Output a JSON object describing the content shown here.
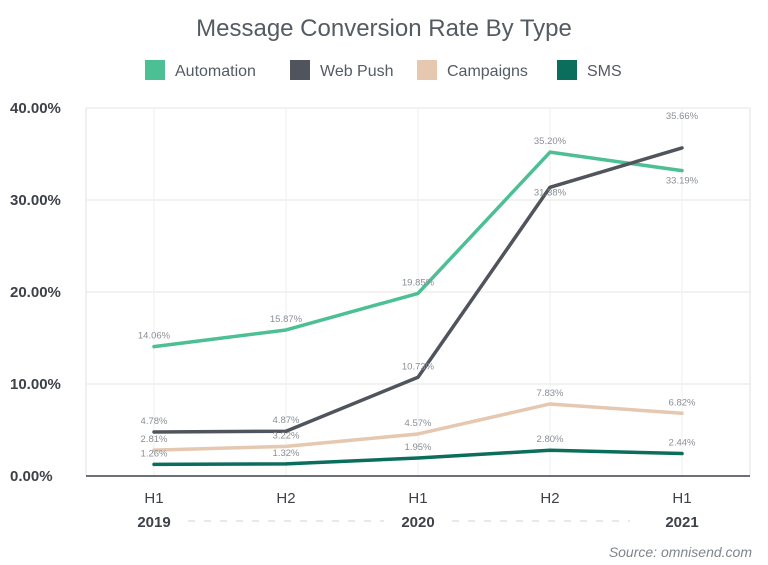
{
  "chart_data": {
    "type": "line",
    "title": "Message Conversion Rate By Type",
    "categories": [
      "H1",
      "H2",
      "H1",
      "H2",
      "H1"
    ],
    "year_labels": [
      {
        "label": "2019",
        "category_index": 0
      },
      {
        "label": "2020",
        "category_index": 2
      },
      {
        "label": "2021",
        "category_index": 4
      }
    ],
    "ylim": [
      0,
      40
    ],
    "yticks": [
      0,
      10,
      20,
      30,
      40
    ],
    "ytick_labels": [
      "0.00%",
      "10.00%",
      "20.00%",
      "30.00%",
      "40.00%"
    ],
    "grid": true,
    "legend_position": "top",
    "series": [
      {
        "name": "Automation",
        "color": "#4dbf94",
        "values": [
          14.06,
          15.87,
          19.85,
          35.2,
          33.19
        ],
        "labels": [
          "14.06%",
          "15.87%",
          "19.85%",
          "35.20%",
          "33.19%"
        ]
      },
      {
        "name": "Web Push",
        "color": "#50545c",
        "values": [
          4.78,
          4.87,
          10.73,
          31.38,
          35.66
        ],
        "labels": [
          "4.78%",
          "4.87%",
          "10.73%",
          "31.38%",
          "35.66%"
        ]
      },
      {
        "name": "Campaigns",
        "color": "#e6c7b0",
        "values": [
          2.81,
          3.22,
          4.57,
          7.83,
          6.82
        ],
        "labels": [
          "2.81%",
          "3.22%",
          "4.57%",
          "7.83%",
          "6.82%"
        ]
      },
      {
        "name": "SMS",
        "color": "#0b6e5c",
        "values": [
          1.26,
          1.32,
          1.95,
          2.8,
          2.44
        ],
        "labels": [
          "1.26%",
          "1.32%",
          "1.95%",
          "2.80%",
          "2.44%"
        ]
      }
    ]
  },
  "source": "Source: omnisend.com"
}
